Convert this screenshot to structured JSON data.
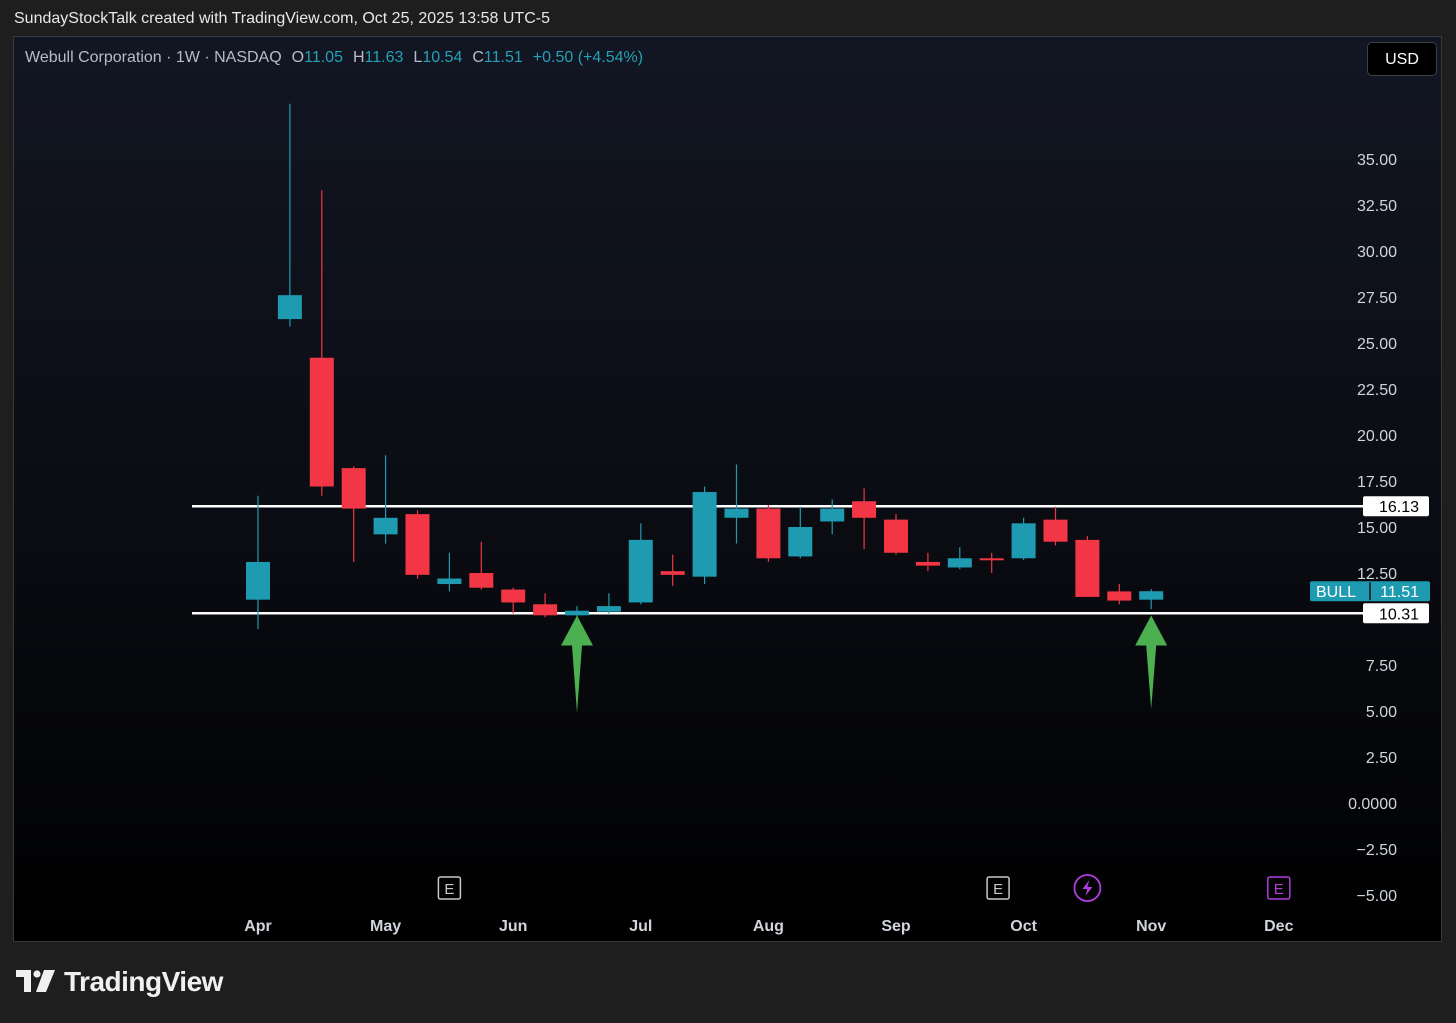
{
  "caption": "SundayStockTalk created with TradingView.com, Oct 25, 2025 13:58 UTC-5",
  "legend": {
    "symbol": "Webull Corporation · 1W · NASDAQ",
    "open_label": "O",
    "open": "11.05",
    "high_label": "H",
    "high": "11.63",
    "low_label": "L",
    "low": "10.54",
    "close_label": "C",
    "close": "11.51",
    "change": "+0.50 (+4.54%)"
  },
  "currency": "USD",
  "brand": {
    "name": "TradingView",
    "icon": "tradingview-logo-icon"
  },
  "colors": {
    "up": "#1e9bb0",
    "down": "#f23645",
    "line": "#ffffff",
    "arrow": "#4caf50",
    "event_e": "#c8c8c8",
    "event_div": "#b23ce0"
  },
  "chart_data": {
    "type": "candlestick",
    "ylim": [
      -5,
      37.5
    ],
    "yticks": [
      "35.00",
      "32.50",
      "30.00",
      "27.50",
      "25.00",
      "22.50",
      "20.00",
      "17.50",
      "15.00",
      "12.50",
      "7.50",
      "5.00",
      "2.50",
      "0.0000",
      "−2.50",
      "−5.00"
    ],
    "x_months": [
      "Apr",
      "May",
      "Jun",
      "Jul",
      "Aug",
      "Sep",
      "Oct",
      "Nov",
      "Dec"
    ],
    "candles": [
      {
        "o": 11.05,
        "h": 16.7,
        "l": 9.45,
        "c": 13.1
      },
      {
        "o": 26.3,
        "h": 38,
        "l": 25.9,
        "c": 27.6
      },
      {
        "o": 24.2,
        "h": 33.3,
        "l": 16.7,
        "c": 17.2
      },
      {
        "o": 18.2,
        "h": 18.3,
        "l": 13.1,
        "c": 16
      },
      {
        "o": 14.6,
        "h": 18.9,
        "l": 14.1,
        "c": 15.5
      },
      {
        "o": 15.7,
        "h": 15.9,
        "l": 12.2,
        "c": 12.4
      },
      {
        "o": 11.9,
        "h": 13.6,
        "l": 11.5,
        "c": 12.2
      },
      {
        "o": 12.5,
        "h": 14.2,
        "l": 11.6,
        "c": 11.7
      },
      {
        "o": 11.6,
        "h": 11.7,
        "l": 10.3,
        "c": 10.9
      },
      {
        "o": 10.8,
        "h": 11.4,
        "l": 10.1,
        "c": 10.2
      },
      {
        "o": 10.2,
        "h": 10.7,
        "l": 10.1,
        "c": 10.45
      },
      {
        "o": 10.4,
        "h": 11.4,
        "l": 10.3,
        "c": 10.7
      },
      {
        "o": 10.9,
        "h": 15.2,
        "l": 10.8,
        "c": 14.3
      },
      {
        "o": 12.6,
        "h": 13.5,
        "l": 11.8,
        "c": 12.4
      },
      {
        "o": 12.3,
        "h": 17.2,
        "l": 11.9,
        "c": 16.9
      },
      {
        "o": 15.5,
        "h": 18.4,
        "l": 14.1,
        "c": 16
      },
      {
        "o": 16,
        "h": 16.2,
        "l": 13.1,
        "c": 13.3
      },
      {
        "o": 13.4,
        "h": 16.1,
        "l": 13.3,
        "c": 15
      },
      {
        "o": 15.3,
        "h": 16.5,
        "l": 14.6,
        "c": 16
      },
      {
        "o": 16.4,
        "h": 17.1,
        "l": 13.8,
        "c": 15.5
      },
      {
        "o": 15.4,
        "h": 15.7,
        "l": 13.5,
        "c": 13.6
      },
      {
        "o": 13.1,
        "h": 13.6,
        "l": 12.6,
        "c": 12.9
      },
      {
        "o": 12.8,
        "h": 13.9,
        "l": 12.7,
        "c": 13.3
      },
      {
        "o": 13.3,
        "h": 13.6,
        "l": 12.5,
        "c": 13.2
      },
      {
        "o": 13.3,
        "h": 15.5,
        "l": 13.2,
        "c": 15.2
      },
      {
        "o": 15.4,
        "h": 16.1,
        "l": 14,
        "c": 14.2
      },
      {
        "o": 14.3,
        "h": 14.5,
        "l": 11.2,
        "c": 11.2
      },
      {
        "o": 11.5,
        "h": 11.9,
        "l": 10.8,
        "c": 11
      },
      {
        "o": 11.05,
        "h": 11.63,
        "l": 10.54,
        "c": 11.51
      }
    ],
    "horizontal_lines": [
      {
        "value": 16.13,
        "label": "16.13"
      },
      {
        "value": 10.31,
        "label": "10.31"
      }
    ],
    "price_tag": {
      "symbol": "BULL",
      "value": "11.51"
    },
    "events": [
      {
        "month_index": 1.5,
        "type": "E"
      },
      {
        "month_index": 5.8,
        "type": "E"
      },
      {
        "month_index": 6.5,
        "type": "dividend"
      },
      {
        "month_index": 8,
        "type": "E"
      }
    ],
    "arrows": [
      {
        "candle": 10,
        "tip": 10.3,
        "base": 4.9
      },
      {
        "candle": 28,
        "tip": 10.3,
        "base": 5.1
      }
    ],
    "grid": false
  }
}
